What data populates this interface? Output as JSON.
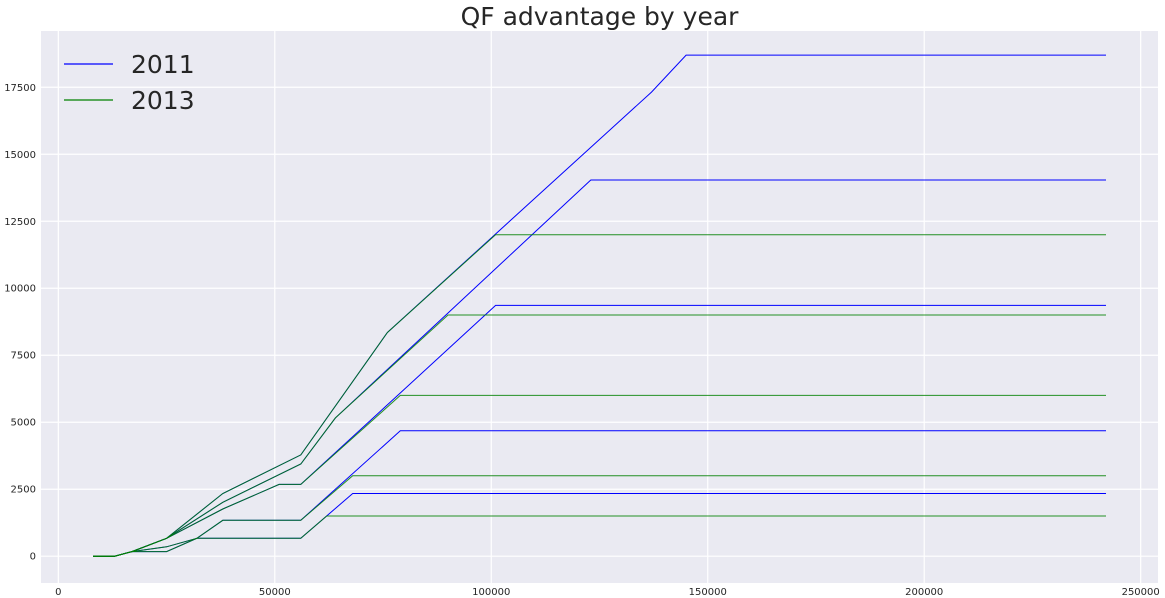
{
  "chart_data": {
    "type": "line",
    "title": "QF advantage by year",
    "xlabel": "",
    "ylabel": "",
    "xlim": [
      -4000,
      254000
    ],
    "ylim": [
      -1000,
      19600
    ],
    "xticks": [
      0,
      50000,
      100000,
      150000,
      200000,
      250000
    ],
    "yticks": [
      0,
      2500,
      5000,
      7500,
      10000,
      12500,
      15000,
      17500
    ],
    "grid": true,
    "legend": "upper-left",
    "colors": {
      "plot_bg": "#EAEAF2",
      "grid": "#FFFFFF"
    },
    "series": [
      {
        "name": "2011",
        "color": "#0000FF",
        "lines": [
          [
            [
              8000,
              0
            ],
            [
              13000,
              0
            ],
            [
              17000,
              170
            ],
            [
              25000,
              170
            ],
            [
              32000,
              670
            ],
            [
              56000,
              670
            ],
            [
              68000,
              2340
            ],
            [
              242000,
              2340
            ]
          ],
          [
            [
              8000,
              0
            ],
            [
              13000,
              0
            ],
            [
              17000,
              170
            ],
            [
              25000,
              350
            ],
            [
              32000,
              670
            ],
            [
              38000,
              1340
            ],
            [
              56000,
              1340
            ],
            [
              79000,
              4680
            ],
            [
              242000,
              4680
            ]
          ],
          [
            [
              8000,
              0
            ],
            [
              13000,
              0
            ],
            [
              17000,
              170
            ],
            [
              25000,
              670
            ],
            [
              38000,
              1760
            ],
            [
              51000,
              2680
            ],
            [
              56000,
              2680
            ],
            [
              101000,
              9360
            ],
            [
              242000,
              9360
            ]
          ],
          [
            [
              8000,
              0
            ],
            [
              13000,
              0
            ],
            [
              17000,
              170
            ],
            [
              25000,
              670
            ],
            [
              38000,
              2010
            ],
            [
              56000,
              3440
            ],
            [
              64000,
              5160
            ],
            [
              123000,
              14040
            ],
            [
              242000,
              14040
            ]
          ],
          [
            [
              8000,
              0
            ],
            [
              13000,
              0
            ],
            [
              17000,
              170
            ],
            [
              25000,
              670
            ],
            [
              38000,
              2340
            ],
            [
              56000,
              3780
            ],
            [
              76000,
              8350
            ],
            [
              137000,
              17320
            ],
            [
              145000,
              18700
            ],
            [
              242000,
              18700
            ]
          ]
        ]
      },
      {
        "name": "2013",
        "color": "#008000",
        "lines": [
          [
            [
              8000,
              0
            ],
            [
              13000,
              0
            ],
            [
              17000,
              170
            ],
            [
              25000,
              170
            ],
            [
              32000,
              670
            ],
            [
              56000,
              670
            ],
            [
              62000,
              1500
            ],
            [
              242000,
              1500
            ]
          ],
          [
            [
              8000,
              0
            ],
            [
              13000,
              0
            ],
            [
              17000,
              170
            ],
            [
              25000,
              350
            ],
            [
              32000,
              670
            ],
            [
              38000,
              1340
            ],
            [
              56000,
              1340
            ],
            [
              68000,
              3000
            ],
            [
              242000,
              3000
            ]
          ],
          [
            [
              8000,
              0
            ],
            [
              13000,
              0
            ],
            [
              17000,
              170
            ],
            [
              25000,
              670
            ],
            [
              38000,
              1760
            ],
            [
              51000,
              2680
            ],
            [
              56000,
              2680
            ],
            [
              79000,
              6000
            ],
            [
              242000,
              6000
            ]
          ],
          [
            [
              8000,
              0
            ],
            [
              13000,
              0
            ],
            [
              17000,
              170
            ],
            [
              25000,
              670
            ],
            [
              38000,
              2010
            ],
            [
              56000,
              3440
            ],
            [
              64000,
              5160
            ],
            [
              90000,
              9000
            ],
            [
              242000,
              9000
            ]
          ],
          [
            [
              8000,
              0
            ],
            [
              13000,
              0
            ],
            [
              17000,
              170
            ],
            [
              25000,
              670
            ],
            [
              38000,
              2340
            ],
            [
              56000,
              3780
            ],
            [
              76000,
              8350
            ],
            [
              101000,
              12000
            ],
            [
              242000,
              12000
            ]
          ]
        ]
      }
    ]
  }
}
